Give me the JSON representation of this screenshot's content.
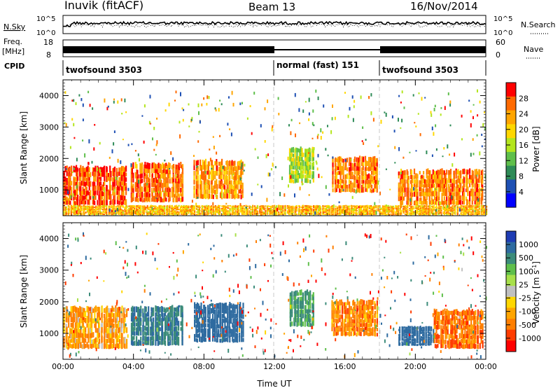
{
  "header": {
    "station": "Inuvik (fitACF)",
    "beam": "Beam 13",
    "date": "16/Nov/2014"
  },
  "strips": {
    "nsky_label": "N.Sky",
    "nsky_ticks": [
      "10^5",
      "10^0"
    ],
    "nsearch_label": "N.Search",
    "nsearch_ticks": [
      "10^5",
      "10^0"
    ],
    "freq_label_top": "Freq.",
    "freq_label_bottom": "[MHz]",
    "freq_ticks": [
      "18",
      "8"
    ],
    "nave_label": "Nave",
    "nave_ticks": [
      "60",
      "0"
    ],
    "cpid_label": "CPID",
    "cpid_segments": [
      {
        "label": "twofsound 3503",
        "start_h": 0,
        "end_h": 12
      },
      {
        "label": "normal (fast) 151",
        "start_h": 12,
        "end_h": 18
      },
      {
        "label": "twofsound 3503",
        "start_h": 18,
        "end_h": 24
      }
    ]
  },
  "chart_data": [
    {
      "type": "heatmap",
      "panel": "power",
      "ylabel": "Slant Range [km]",
      "xlim_hours": [
        0,
        24
      ],
      "ylim_km": [
        180,
        4500
      ],
      "yticks": [
        "1000",
        "2000",
        "3000",
        "4000"
      ],
      "colorbar_label": "Power [dB]",
      "colorbar_ticks": [
        "28",
        "24",
        "20",
        "16",
        "12",
        "8",
        "4"
      ],
      "colorbar_colors": [
        "#ff0000",
        "#ff6a00",
        "#ffa500",
        "#ffd700",
        "#b4e61e",
        "#5fbf4b",
        "#2e8b57",
        "#1e50b4",
        "#0000ff"
      ],
      "regions": [
        {
          "h0": 0.0,
          "h1": 3.6,
          "r0": 500,
          "r1": 1700,
          "value": 28
        },
        {
          "h0": 3.8,
          "h1": 6.8,
          "r0": 600,
          "r1": 1800,
          "value": 26
        },
        {
          "h0": 7.4,
          "h1": 10.2,
          "r0": 700,
          "r1": 1900,
          "value": 24
        },
        {
          "h0": 12.8,
          "h1": 14.2,
          "r0": 1200,
          "r1": 2300,
          "value": 16
        },
        {
          "h0": 15.2,
          "h1": 17.8,
          "r0": 900,
          "r1": 2000,
          "value": 25
        },
        {
          "h0": 19.0,
          "h1": 23.8,
          "r0": 500,
          "r1": 1600,
          "value": 25
        },
        {
          "h0": 0.0,
          "h1": 24.0,
          "r0": 200,
          "r1": 500,
          "value": 22
        }
      ]
    },
    {
      "type": "heatmap",
      "panel": "velocity",
      "xlabel": "Time UT",
      "ylabel": "Slant Range [km]",
      "xlim_hours": [
        0,
        24
      ],
      "ylim_km": [
        180,
        4500
      ],
      "xticks": [
        "00:00",
        "04:00",
        "08:00",
        "12:00",
        "16:00",
        "20:00",
        "00:00"
      ],
      "yticks": [
        "1000",
        "2000",
        "3000",
        "4000"
      ],
      "colorbar_label": "Velocity [m s^-1]",
      "colorbar_ticks": [
        "1000",
        "500",
        "100",
        "25",
        "-25",
        "-100",
        "-500",
        "-1000"
      ],
      "colorbar_colors": [
        "#1e3cb4",
        "#2e6ba0",
        "#3c8c7a",
        "#5fbf4b",
        "#a8e04a",
        "#c0c0c0",
        "#ffd700",
        "#ffa500",
        "#ff7f00",
        "#ff3c00",
        "#ff0000"
      ],
      "regions": [
        {
          "h0": 0.0,
          "h1": 3.6,
          "r0": 500,
          "r1": 1800,
          "value": -100
        },
        {
          "h0": 3.8,
          "h1": 6.8,
          "r0": 600,
          "r1": 1800,
          "value": 500
        },
        {
          "h0": 7.4,
          "h1": 10.2,
          "r0": 700,
          "r1": 1900,
          "value": 800
        },
        {
          "h0": 12.8,
          "h1": 14.2,
          "r0": 1200,
          "r1": 2300,
          "value": 300
        },
        {
          "h0": 15.2,
          "h1": 17.8,
          "r0": 900,
          "r1": 2000,
          "value": -150
        },
        {
          "h0": 19.0,
          "h1": 21.0,
          "r0": 600,
          "r1": 1200,
          "value": 700
        },
        {
          "h0": 21.0,
          "h1": 23.8,
          "r0": 500,
          "r1": 1700,
          "value": -200
        }
      ]
    }
  ]
}
